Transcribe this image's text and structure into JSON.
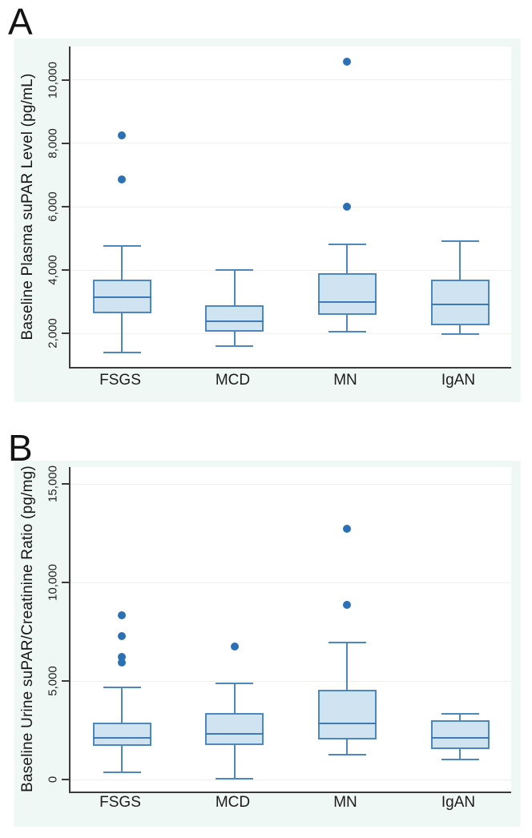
{
  "figure": {
    "panel_a_label": "A",
    "panel_b_label": "B"
  },
  "colors": {
    "panel_bg": "#eff8f4",
    "plot_bg": "#ffffff",
    "box_fill": "#cfe3f0",
    "box_border": "#4c87bd",
    "median": "#3d7ab6",
    "dot": "#2b70b5",
    "axis": "#3b3b3b",
    "grid": "#efefec",
    "text": "#1e1e1e"
  },
  "panels": [
    {
      "label": "A",
      "y_axis_title": "Baseline Plasma suPAR Level (pg/mL)",
      "y_tick_labels": [
        "2,000",
        "4,000",
        "6,000",
        "8,000",
        "10,000"
      ],
      "categories": [
        "FSGS",
        "MCD",
        "MN",
        "IgAN"
      ]
    },
    {
      "label": "B",
      "y_axis_title": "Baseline Urine suPAR/Creatinine Ratio (pg/mg)",
      "y_tick_labels": [
        "0",
        "5,000",
        "10,000",
        "15,000"
      ],
      "categories": [
        "FSGS",
        "MCD",
        "MN",
        "IgAN"
      ]
    }
  ],
  "chart_data": [
    {
      "type": "boxplot",
      "title": "",
      "xlabel": "",
      "ylabel": "Baseline Plasma suPAR Level (pg/mL)",
      "categories": [
        "FSGS",
        "MCD",
        "MN",
        "IgAN"
      ],
      "y_ticks": [
        2000,
        4000,
        6000,
        8000,
        10000
      ],
      "ylim": [
        950,
        11050
      ],
      "grid": true,
      "legend": "none",
      "series": [
        {
          "name": "FSGS",
          "whisker_low": 1400,
          "q1": 2650,
          "median": 3150,
          "q3": 3700,
          "whisker_high": 4775,
          "outliers": [
            6850,
            8250
          ]
        },
        {
          "name": "MCD",
          "whisker_low": 1600,
          "q1": 2050,
          "median": 2400,
          "q3": 2900,
          "whisker_high": 4000,
          "outliers": []
        },
        {
          "name": "MN",
          "whisker_low": 2050,
          "q1": 2600,
          "median": 3000,
          "q3": 3900,
          "whisker_high": 4825,
          "outliers": [
            6000,
            10560
          ]
        },
        {
          "name": "IgAN",
          "whisker_low": 1975,
          "q1": 2275,
          "median": 2925,
          "q3": 3700,
          "whisker_high": 4925,
          "outliers": []
        }
      ]
    },
    {
      "type": "boxplot",
      "title": "",
      "xlabel": "",
      "ylabel": "Baseline Urine suPAR/Creatinine Ratio (pg/mg)",
      "categories": [
        "FSGS",
        "MCD",
        "MN",
        "IgAN"
      ],
      "y_ticks": [
        0,
        5000,
        10000,
        15000
      ],
      "ylim": [
        -610,
        15870
      ],
      "grid": true,
      "legend": "none",
      "series": [
        {
          "name": "FSGS",
          "whisker_low": 350,
          "q1": 1700,
          "median": 2100,
          "q3": 2900,
          "whisker_high": 4700,
          "outliers": [
            5950,
            6230,
            7290,
            8330
          ]
        },
        {
          "name": "MCD",
          "whisker_low": 60,
          "q1": 1740,
          "median": 2300,
          "q3": 3390,
          "whisker_high": 4880,
          "outliers": [
            6770
          ]
        },
        {
          "name": "MN",
          "whisker_low": 1250,
          "q1": 2040,
          "median": 2850,
          "q3": 4540,
          "whisker_high": 6940,
          "outliers": [
            8870,
            12740
          ]
        },
        {
          "name": "IgAN",
          "whisker_low": 1020,
          "q1": 1560,
          "median": 2100,
          "q3": 3010,
          "whisker_high": 3350,
          "outliers": []
        }
      ]
    }
  ]
}
